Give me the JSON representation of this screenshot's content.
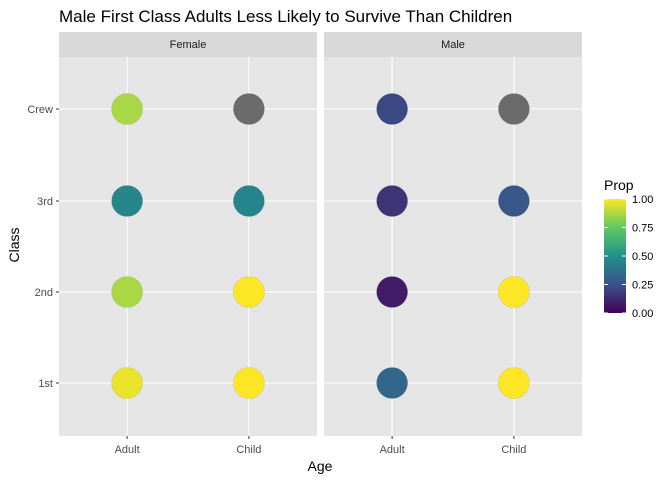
{
  "chart_data": {
    "type": "scatter",
    "title": "Male First Class Adults Less Likely to Survive Than Children",
    "xlabel": "Age",
    "ylabel": "Class",
    "facets": [
      "Female",
      "Male"
    ],
    "x_categories": [
      "Adult",
      "Child"
    ],
    "y_categories": [
      "1st",
      "2nd",
      "3rd",
      "Crew"
    ],
    "points": [
      {
        "facet": "Female",
        "age": "Adult",
        "class": "1st",
        "prop": 0.97
      },
      {
        "facet": "Female",
        "age": "Adult",
        "class": "2nd",
        "prop": 0.87
      },
      {
        "facet": "Female",
        "age": "Adult",
        "class": "3rd",
        "prop": 0.46
      },
      {
        "facet": "Female",
        "age": "Adult",
        "class": "Crew",
        "prop": 0.87
      },
      {
        "facet": "Female",
        "age": "Child",
        "class": "1st",
        "prop": 1.0
      },
      {
        "facet": "Female",
        "age": "Child",
        "class": "2nd",
        "prop": 1.0
      },
      {
        "facet": "Female",
        "age": "Child",
        "class": "3rd",
        "prop": 0.45
      },
      {
        "facet": "Female",
        "age": "Child",
        "class": "Crew",
        "prop": null
      },
      {
        "facet": "Male",
        "age": "Adult",
        "class": "1st",
        "prop": 0.33
      },
      {
        "facet": "Male",
        "age": "Adult",
        "class": "2nd",
        "prop": 0.08
      },
      {
        "facet": "Male",
        "age": "Adult",
        "class": "3rd",
        "prop": 0.16
      },
      {
        "facet": "Male",
        "age": "Adult",
        "class": "Crew",
        "prop": 0.22
      },
      {
        "facet": "Male",
        "age": "Child",
        "class": "1st",
        "prop": 1.0
      },
      {
        "facet": "Male",
        "age": "Child",
        "class": "2nd",
        "prop": 1.0
      },
      {
        "facet": "Male",
        "age": "Child",
        "class": "3rd",
        "prop": 0.27
      },
      {
        "facet": "Male",
        "age": "Child",
        "class": "Crew",
        "prop": null
      }
    ],
    "na_color": "#6b6b6b",
    "legend": {
      "title": "Prop",
      "ticks": [
        "0.00",
        "0.25",
        "0.50",
        "0.75",
        "1.00"
      ],
      "tick_values": [
        0,
        0.25,
        0.5,
        0.75,
        1.0
      ],
      "range": [
        0,
        1
      ],
      "placement": "right"
    },
    "colorscale": [
      "#440154",
      "#3b528b",
      "#21918c",
      "#5ec962",
      "#fde725"
    ],
    "panel_background": "#e5e5e5",
    "strip_background": "#d9d9d9",
    "grid_color": "#ffffff"
  }
}
